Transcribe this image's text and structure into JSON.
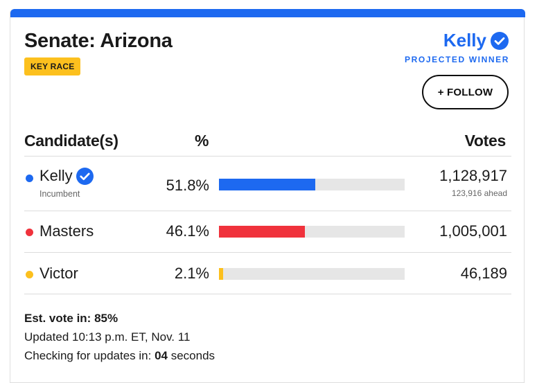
{
  "race": {
    "title": "Senate: Arizona",
    "badge": "KEY RACE",
    "winner_name": "Kelly",
    "winner_status": "PROJECTED WINNER",
    "follow_label": "+ FOLLOW"
  },
  "table": {
    "headers": {
      "candidate": "Candidate(s)",
      "percent": "%",
      "votes": "Votes"
    },
    "rows": [
      {
        "name": "Kelly",
        "sub": "Incumbent",
        "percent_text": "51.8%",
        "percent": 51.8,
        "votes": "1,128,917",
        "ahead": "123,916 ahead",
        "color": "#1d69f0",
        "winner": true
      },
      {
        "name": "Masters",
        "percent_text": "46.1%",
        "percent": 46.1,
        "votes": "1,005,001",
        "color": "#f0323c",
        "winner": false
      },
      {
        "name": "Victor",
        "percent_text": "2.1%",
        "percent": 2.1,
        "votes": "46,189",
        "color": "#fcc01e",
        "winner": false
      }
    ]
  },
  "footer": {
    "est_vote": "Est. vote in: 85%",
    "updated": "Updated 10:13 p.m. ET, Nov. 11",
    "checking_prefix": "Checking for updates in: ",
    "checking_value": "04",
    "checking_suffix": " seconds"
  },
  "colors": {
    "accent": "#1d69f0",
    "badge": "#fcc01e"
  },
  "icons": {
    "verified": "verified-check-icon"
  }
}
